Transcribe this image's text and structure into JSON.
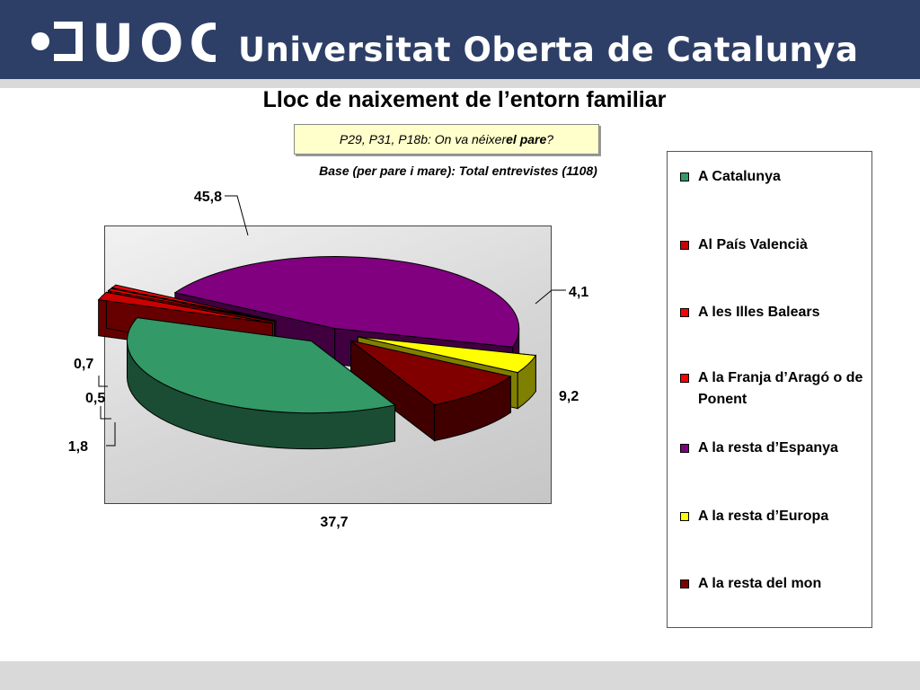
{
  "header": {
    "logo_text": "UOC",
    "university_name": "Universitat Oberta de Catalunya"
  },
  "slide": {
    "title": "Lloc de naixement de l’entorn familiar",
    "question_prefix": "P29, P31, P18b: On va néixer ",
    "question_bold": "el pare",
    "question_suffix": "?",
    "base": "Base (per pare i mare): Total entrevistes (1108)"
  },
  "chart_data": {
    "type": "pie",
    "style": "3d-exploded",
    "categories": [
      "A Catalunya",
      "Al País Valencià",
      "A les Illes Balears",
      "A la Franja d’Aragó o de Ponent",
      "A la resta d’Espanya",
      "A la resta d’Europa",
      "A la resta del mon"
    ],
    "values": [
      37.7,
      1.8,
      0.5,
      0.7,
      45.8,
      4.1,
      9.2
    ],
    "labels": [
      "37,7",
      "1,8",
      "0,5",
      "0,7",
      "45,8",
      "4,1",
      "9,2"
    ],
    "colors": [
      "#339966",
      "#cc0000",
      "#ff0000",
      "#ff0000",
      "#800080",
      "#ffff00",
      "#800000"
    ],
    "legend_position": "right"
  }
}
